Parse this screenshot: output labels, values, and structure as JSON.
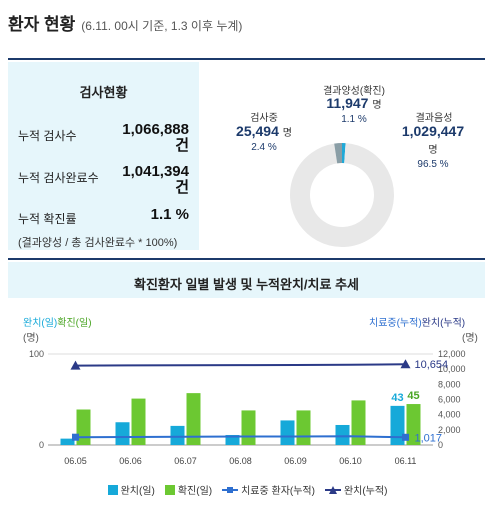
{
  "header": {
    "title": "환자 현황",
    "subtitle": "(6.11. 00시 기준, 1.3 이후 누계)"
  },
  "test_status": {
    "title": "검사현황",
    "items": [
      {
        "label": "누적 검사수",
        "value": "1,066,888",
        "unit": "건"
      },
      {
        "label": "누적 검사완료수",
        "value": "1,041,394",
        "unit": "건"
      },
      {
        "label": "누적 확진률",
        "value": "1.1 %",
        "unit": ""
      }
    ],
    "note": "(결과양성 / 총 검사완료수 * 100%)"
  },
  "donut": {
    "segments": [
      {
        "name": "결과양성(확진)",
        "value": "11,947",
        "unit": "명",
        "pct": "1.1 %",
        "fraction": 0.011,
        "color": "#1fa9d8"
      },
      {
        "name": "결과음성",
        "value": "1,029,447",
        "unit": "명",
        "pct": "96.5 %",
        "fraction": 0.965,
        "color": "#e8e8e8"
      },
      {
        "name": "검사중",
        "value": "25,494",
        "unit": "명",
        "pct": "2.4 %",
        "fraction": 0.024,
        "color": "#8a9ea6"
      }
    ]
  },
  "trend": {
    "title": "확진환자 일별 발생 및 누적완치/치료 추세",
    "left_axis_title_a": "완치(일)",
    "left_axis_title_b": "확진(일)",
    "left_axis_unit": "(명)",
    "right_axis_title_a": "치료중(누적)",
    "right_axis_title_b": "완치(누적)",
    "right_axis_unit": "(명)",
    "legend": [
      "완치(일)",
      "확진(일)",
      "치료중 환자(누적)",
      "완치(누적)"
    ],
    "colors": {
      "recover_daily": "#16a9d9",
      "confirm_daily": "#6cc832",
      "treating": "#2e6fd0",
      "recovered_cum": "#2b3a87"
    }
  },
  "chart_data": {
    "type": "bar",
    "categories": [
      "06.05",
      "06.06",
      "06.07",
      "06.08",
      "06.09",
      "06.10",
      "06.11"
    ],
    "series": [
      {
        "name": "완치(일)",
        "type": "bar",
        "axis": "left",
        "values": [
          7,
          25,
          21,
          11,
          27,
          22,
          43
        ]
      },
      {
        "name": "확진(일)",
        "type": "bar",
        "axis": "left",
        "values": [
          39,
          51,
          57,
          38,
          38,
          49,
          45
        ]
      },
      {
        "name": "치료중 환자(누적)",
        "type": "line",
        "axis": "right",
        "values": [
          1029,
          1055,
          1091,
          1118,
          1129,
          1156,
          1017
        ]
      },
      {
        "name": "완치(누적)",
        "type": "line",
        "axis": "right",
        "values": [
          10473,
          10498,
          10519,
          10530,
          10557,
          10579,
          10654
        ]
      }
    ],
    "left_axis": {
      "ylim": [
        0,
        100
      ],
      "ticks": [
        "0",
        "100"
      ]
    },
    "right_axis": {
      "ylim": [
        0,
        12000
      ],
      "ticks": [
        "0",
        "2,000",
        "4,000",
        "6,000",
        "8,000",
        "10,000",
        "12,000"
      ]
    },
    "data_labels": {
      "recover_last": "43",
      "confirm_last": "45",
      "treating_last": "1,017",
      "recovered_last": "10,654"
    }
  }
}
